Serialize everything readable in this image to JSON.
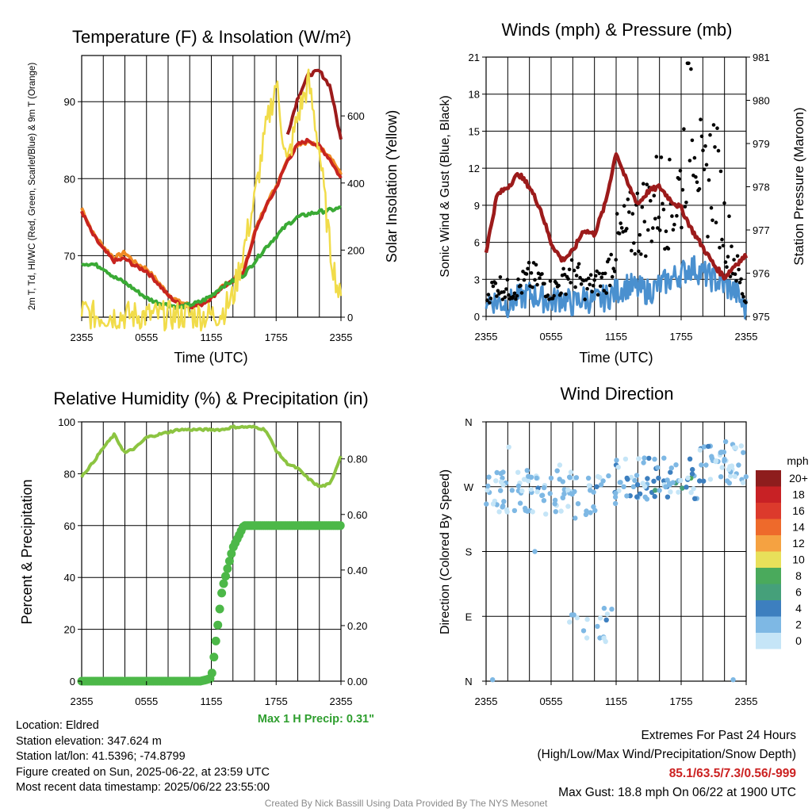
{
  "colors": {
    "temp": "#c7241f",
    "dewpoint": "#3aaa35",
    "heat_index": "#e66d1f",
    "t9m": "#f08a24",
    "wind_chill": "#2b6fb5",
    "insolation": "#f1dc4a",
    "wind": "#4a90cf",
    "gust": "#000000",
    "pressure": "#9c1b1b",
    "rh": "#8cc441",
    "precip": "#4cb848"
  },
  "footer": "Created By Nick Bassill Using Data Provided By The NYS Mesonet",
  "info": {
    "location": "Location: Eldred",
    "elevation": "Station elevation: 347.624 m",
    "latlon": "Station lat/lon: 41.5396; -74.8799",
    "created": "Figure created on Sun, 2025-06-22, at 23:59 UTC",
    "recent": "Most recent data timestamp: 2025/06/22 23:55:00",
    "extremes_title": "Extremes For Past 24 Hours",
    "extremes_fields": "(High/Low/Max Wind/Precipitation/Snow Depth)",
    "extremes_values": "85.1/63.5/7.3/0.56/-999",
    "max_gust": "Max Gust: 18.8 mph On 06/22 at 1900 UTC"
  },
  "chart_data": [
    {
      "id": "temp",
      "type": "line",
      "title": "Temperature (F) & Insolation (W/m²)",
      "xlabel": "Time (UTC)",
      "ylabel": "2m T, Td, HI/WC (Red, Green, Scarlet/Blue) & 9m T (Orange)",
      "ylabel_right": "Solar Insolation (Yellow)",
      "xticks": [
        "2355",
        "0555",
        "1155",
        "1755",
        "2355"
      ],
      "ylim": [
        62,
        96
      ],
      "yticks": [
        70,
        80,
        90
      ],
      "y2lim": [
        0,
        780
      ],
      "y2ticks": [
        0,
        200,
        400,
        600
      ],
      "x": [
        0,
        1,
        2,
        3,
        4,
        5,
        6,
        7,
        8,
        9,
        10,
        11,
        12,
        13,
        14,
        15,
        16,
        17,
        18,
        19,
        20,
        21,
        22,
        23,
        24
      ],
      "series": [
        {
          "name": "9m T",
          "axis": "left",
          "width": 4,
          "values": [
            76.2,
            73.0,
            71.2,
            69.7,
            70.4,
            69.0,
            68.3,
            66.7,
            65.0,
            64.0,
            63.6,
            63.7,
            64.7,
            66.0,
            66.8,
            68.0,
            73.0,
            76.5,
            79.0,
            82.5,
            84.5,
            84.8,
            84.0,
            83.0,
            80.5
          ]
        },
        {
          "name": "2m T",
          "axis": "left",
          "width": 4,
          "values": [
            75.8,
            72.8,
            70.8,
            69.3,
            69.6,
            68.6,
            68.0,
            66.5,
            64.8,
            63.7,
            63.4,
            63.6,
            64.5,
            65.9,
            66.6,
            67.8,
            72.8,
            76.2,
            78.8,
            82.2,
            84.4,
            85.0,
            84.2,
            82.5,
            80.0
          ]
        },
        {
          "name": "Heat Index",
          "axis": "left",
          "width": 4,
          "values": [
            null,
            null,
            null,
            null,
            null,
            null,
            null,
            null,
            null,
            null,
            null,
            null,
            null,
            null,
            null,
            null,
            null,
            null,
            null,
            85.5,
            90.5,
            93.5,
            94.0,
            92.0,
            85.0
          ]
        },
        {
          "name": "Td",
          "axis": "left",
          "width": 4,
          "values": [
            69.0,
            68.9,
            68.4,
            67.2,
            66.5,
            65.5,
            64.5,
            63.9,
            63.6,
            63.3,
            63.6,
            64.0,
            64.8,
            66.0,
            66.7,
            67.5,
            69.2,
            71.0,
            72.5,
            74.0,
            75.0,
            75.4,
            75.7,
            75.9,
            76.2
          ]
        },
        {
          "name": "Insolation",
          "axis": "right",
          "width": 2.5,
          "values": [
            20,
            5,
            5,
            5,
            5,
            5,
            5,
            5,
            5,
            5,
            5,
            5,
            5,
            15,
            60,
            200,
            350,
            550,
            700,
            450,
            600,
            700,
            500,
            200,
            40
          ]
        }
      ]
    },
    {
      "id": "wind",
      "type": "line",
      "title": "Winds (mph) & Pressure (mb)",
      "xlabel": "Time (UTC)",
      "ylabel": "Sonic Wind & Gust (Blue, Black)",
      "ylabel_right": "Station Pressure (Maroon)",
      "xticks": [
        "2355",
        "0555",
        "1155",
        "1755",
        "2355"
      ],
      "ylim": [
        0,
        21
      ],
      "yticks": [
        0,
        3,
        6,
        9,
        12,
        15,
        18,
        21
      ],
      "y2lim": [
        975,
        981
      ],
      "y2ticks": [
        975,
        976,
        977,
        978,
        979,
        980,
        981
      ],
      "x": [
        0,
        1,
        2,
        3,
        4,
        5,
        6,
        7,
        8,
        9,
        10,
        11,
        12,
        13,
        14,
        15,
        16,
        17,
        18,
        19,
        20,
        21,
        22,
        23,
        24
      ],
      "series": [
        {
          "name": "Sonic Wind",
          "axis": "left",
          "values": [
            1.5,
            1.2,
            1.0,
            1.5,
            1.8,
            1.5,
            1.2,
            1.5,
            1.0,
            1.5,
            1.2,
            1.5,
            2.0,
            2.5,
            2.2,
            2.0,
            2.5,
            3.0,
            3.5,
            4.0,
            3.5,
            3.0,
            2.5,
            2.0,
            0.5
          ]
        },
        {
          "name": "Pressure",
          "axis": "right",
          "values": [
            976.5,
            977.8,
            978.0,
            978.3,
            978.0,
            977.5,
            976.7,
            976.3,
            976.5,
            977.0,
            976.9,
            977.6,
            978.8,
            978.1,
            977.6,
            977.9,
            978.0,
            977.7,
            977.5,
            977.0,
            976.6,
            976.2,
            975.9,
            976.2,
            976.4
          ]
        },
        {
          "name": "Gust",
          "axis": "left",
          "kind": "scatter",
          "values": [
            1.5,
            2.5,
            2.0,
            2.2,
            3.0,
            2.8,
            2.0,
            2.5,
            3.8,
            2.2,
            2.5,
            2.8,
            5.5,
            6.5,
            7.5,
            8.0,
            9.5,
            8.5,
            10.0,
            18.8,
            9.0,
            12.0,
            7.0,
            4.0,
            1.0
          ]
        }
      ]
    },
    {
      "id": "rh",
      "type": "line",
      "title": "Relative Humidity (%) & Precipitation (in)",
      "xlabel": "",
      "ylabel": "Percent & Precipitation",
      "xticks": [
        "2355",
        "0555",
        "1155",
        "1755",
        "2355"
      ],
      "ylim": [
        0,
        100
      ],
      "yticks": [
        0,
        20,
        40,
        60,
        80,
        100
      ],
      "y2lim": [
        0,
        0.9333
      ],
      "y2ticks": [
        "0.00",
        "0.20",
        "0.40",
        "0.60",
        "0.80"
      ],
      "x": [
        0,
        1,
        2,
        3,
        4,
        5,
        6,
        7,
        8,
        9,
        10,
        11,
        12,
        13,
        14,
        15,
        16,
        17,
        18,
        19,
        20,
        21,
        22,
        23,
        24
      ],
      "annotation": "Max 1 H Precip: 0.31\"",
      "series": [
        {
          "name": "RH",
          "axis": "left",
          "values": [
            79,
            84,
            90,
            95,
            88,
            90,
            94,
            95,
            96,
            97,
            97,
            97,
            97,
            97,
            98,
            98,
            98,
            97,
            89,
            84,
            82,
            78,
            75,
            76,
            87
          ]
        },
        {
          "name": "Precip",
          "axis": "right",
          "kind": "dots",
          "values": [
            0,
            0,
            0,
            0,
            0,
            0,
            0,
            0,
            0,
            0,
            0,
            0,
            0.01,
            0.33,
            0.48,
            0.56,
            0.56,
            0.56,
            0.56,
            0.56,
            0.56,
            0.56,
            0.56,
            0.56,
            0.56
          ]
        }
      ]
    },
    {
      "id": "dir",
      "type": "scatter",
      "title": "Wind Direction",
      "ylabel": "Direction (Colored By Speed)",
      "xticks": [
        "2355",
        "0555",
        "1155",
        "1755",
        "2355"
      ],
      "yticks": [
        "N",
        "E",
        "S",
        "W",
        "N"
      ],
      "ylim": [
        0,
        360
      ],
      "legend": {
        "unit": "mph",
        "levels": [
          "20+",
          "18",
          "16",
          "14",
          "12",
          "10",
          "8",
          "6",
          "4",
          "2",
          "0"
        ],
        "colors": [
          "#8e1d1d",
          "#c82125",
          "#dc3a2c",
          "#ee6a2b",
          "#f5a241",
          "#e8e05a",
          "#4aaa5c",
          "#45a07a",
          "#3d7fbf",
          "#7eb8e4",
          "#c5e5f7"
        ]
      },
      "points_hour": [
        0.3,
        0.8,
        1.5,
        1.9,
        2.4,
        3.1,
        3.6,
        4.2,
        4.8,
        5.2,
        6.0,
        6.5,
        7.2,
        7.9,
        8.4,
        9.0,
        9.6,
        10.2,
        10.8,
        11.3,
        11.9,
        12.4,
        13.0,
        13.6,
        14.2,
        14.8,
        15.3,
        15.9,
        16.4,
        17.0,
        17.5,
        18.1,
        18.6,
        19.2,
        19.7,
        20.3,
        20.8,
        21.4,
        22.0,
        22.5,
        23.1,
        23.6,
        0.6,
        2.1,
        5.5,
        7.7,
        10.5,
        12.0,
        14.0,
        16.7,
        18.9,
        21.7,
        22.8,
        23.3,
        8.1,
        9.3,
        11.1,
        11.6,
        12.7,
        3.9,
        1.0,
        15.6,
        4.5,
        6.8
      ],
      "points_deg": [
        262,
        250,
        282,
        238,
        265,
        275,
        240,
        262,
        268,
        258,
        282,
        244,
        260,
        92,
        88,
        70,
        265,
        270,
        278,
        285,
        262,
        276,
        282,
        270,
        260,
        268,
        262,
        282,
        278,
        290,
        275,
        268,
        280,
        285,
        278,
        300,
        312,
        305,
        308,
        298,
        288,
        280,
        2,
        325,
        232,
        82,
        60,
        300,
        255,
        270,
        282,
        318,
        2,
        300,
        92,
        60,
        85,
        100,
        270,
        278,
        245,
        265,
        180,
        300
      ],
      "points_speed": [
        1,
        0.5,
        1.2,
        0.8,
        1,
        0.6,
        2,
        1,
        3,
        1.5,
        2.2,
        0.8,
        1.5,
        1,
        0.6,
        2,
        1.2,
        3,
        1,
        2,
        3.5,
        2.6,
        4,
        2,
        3,
        4.5,
        3.5,
        3.2,
        4,
        3,
        5,
        6.5,
        4,
        2.5,
        3.5,
        1.5,
        1.2,
        2.6,
        1,
        0.8,
        2.5,
        1.5,
        1,
        0.5,
        0.8,
        0.6,
        1,
        3.2,
        2.4,
        4.5,
        7,
        2,
        1.5,
        2,
        1,
        0.5,
        4,
        1.8,
        2.2,
        0.6,
        1,
        6.5,
        1,
        0.8
      ]
    }
  ]
}
